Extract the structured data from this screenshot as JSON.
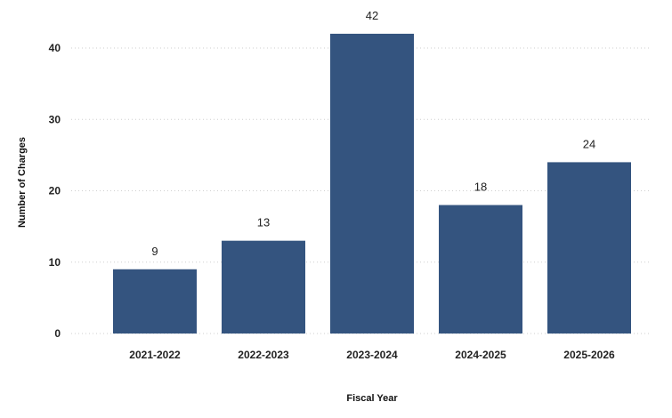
{
  "chart_data": {
    "type": "bar",
    "categories": [
      "2021-2022",
      "2022-2023",
      "2023-2024",
      "2024-2025",
      "2025-2026"
    ],
    "values": [
      9,
      13,
      42,
      18,
      24
    ],
    "xlabel": "Fiscal Year",
    "ylabel": "Number of Charges",
    "ylim": [
      0,
      45
    ],
    "yticks": [
      0,
      10,
      20,
      30,
      40
    ],
    "grid": true,
    "bar_color": "#34547f",
    "data_labels": true
  }
}
